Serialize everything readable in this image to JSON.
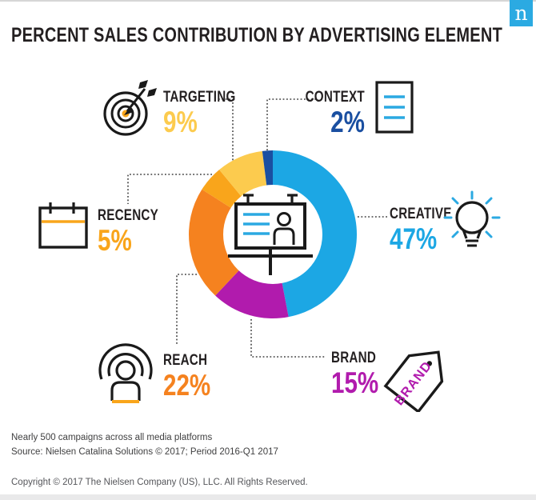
{
  "header": {
    "title": "PERCENT SALES CONTRIBUTION BY ADVERTISING ELEMENT",
    "logo_letter": "n",
    "logo_color": "#2baae2"
  },
  "chart_data": {
    "type": "pie",
    "style": "donut",
    "title": "PERCENT SALES CONTRIBUTION BY ADVERTISING ELEMENT",
    "unit": "%",
    "start_angle_deg": 0,
    "direction": "clockwise",
    "legend_position": "around-chart-callouts",
    "center_icon": "billboard-ad",
    "segments": [
      {
        "label": "CREATIVE",
        "value": 47,
        "pct": "47%",
        "color": "#1ca7e4",
        "icon": "lightbulb-icon"
      },
      {
        "label": "BRAND",
        "value": 15,
        "pct": "15%",
        "color": "#b11bad",
        "icon": "price-tag-icon"
      },
      {
        "label": "REACH",
        "value": 22,
        "pct": "22%",
        "color": "#f5821f",
        "icon": "broadcast-person-icon"
      },
      {
        "label": "RECENCY",
        "value": 5,
        "pct": "5%",
        "color": "#f9a51b",
        "icon": "calendar-icon"
      },
      {
        "label": "TARGETING",
        "value": 9,
        "pct": "9%",
        "color": "#fccb4e",
        "icon": "target-arrow-icon"
      },
      {
        "label": "CONTEXT",
        "value": 2,
        "pct": "2%",
        "color": "#1a4fa1",
        "icon": "document-icon"
      }
    ]
  },
  "footer": {
    "note": "Nearly 500 campaigns across all media platforms",
    "source": "Source: Nielsen Catalina Solutions © 2017; Period 2016-Q1 2017",
    "copyright": "Copyright © 2017 The Nielsen Company (US), LLC. All Rights Reserved."
  }
}
